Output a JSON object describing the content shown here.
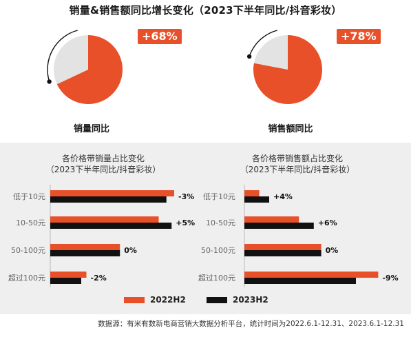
{
  "title": "销量&销售额同比增长变化（2023下半年同比/抖音彩妆）",
  "colors": {
    "accent": "#e8502a",
    "dark": "#111111",
    "gray": "#e3e3e3",
    "panel": "#efefef"
  },
  "pies": [
    {
      "label": "销量同比",
      "badge": "+68%",
      "value": 68
    },
    {
      "label": "销售额同比",
      "badge": "+78%",
      "value": 78
    }
  ],
  "chart_data": [
    {
      "type": "pie",
      "title": "销量同比",
      "values": [
        68,
        32
      ],
      "annotation": "+68%"
    },
    {
      "type": "pie",
      "title": "销售额同比",
      "values": [
        78,
        22
      ],
      "annotation": "+78%"
    },
    {
      "type": "bar",
      "orientation": "horizontal",
      "title": "各价格带销量占比变化",
      "subtitle": "（2023下半年同比/抖音彩妆）",
      "categories": [
        "低于10元",
        "10-50元",
        "50-100元",
        "超过100元"
      ],
      "series": [
        {
          "name": "2022H2",
          "values": [
            48,
            42,
            27,
            14
          ]
        },
        {
          "name": "2023H2",
          "values": [
            45,
            47,
            27,
            12
          ]
        }
      ],
      "labels": [
        "-3%",
        "+5%",
        "0%",
        "-2%"
      ]
    },
    {
      "type": "bar",
      "orientation": "horizontal",
      "title": "各价格带销售额占比变化",
      "subtitle": "（2023下半年同比/抖音彩妆）",
      "categories": [
        "低于10元",
        "10-50元",
        "50-100元",
        "超过100元"
      ],
      "series": [
        {
          "name": "2022H2",
          "values": [
            6,
            22,
            31,
            54
          ]
        },
        {
          "name": "2023H2",
          "values": [
            10,
            28,
            31,
            45
          ]
        }
      ],
      "labels": [
        "+4%",
        "+6%",
        "0%",
        "-9%"
      ]
    }
  ],
  "legend": [
    {
      "name": "2022H2",
      "color": "#e8502a"
    },
    {
      "name": "2023H2",
      "color": "#111111"
    }
  ],
  "footer": "数据源：有米有数新电商营销大数据分析平台，统计时间为2022.6.1-12.31、2023.6.1-12.31"
}
